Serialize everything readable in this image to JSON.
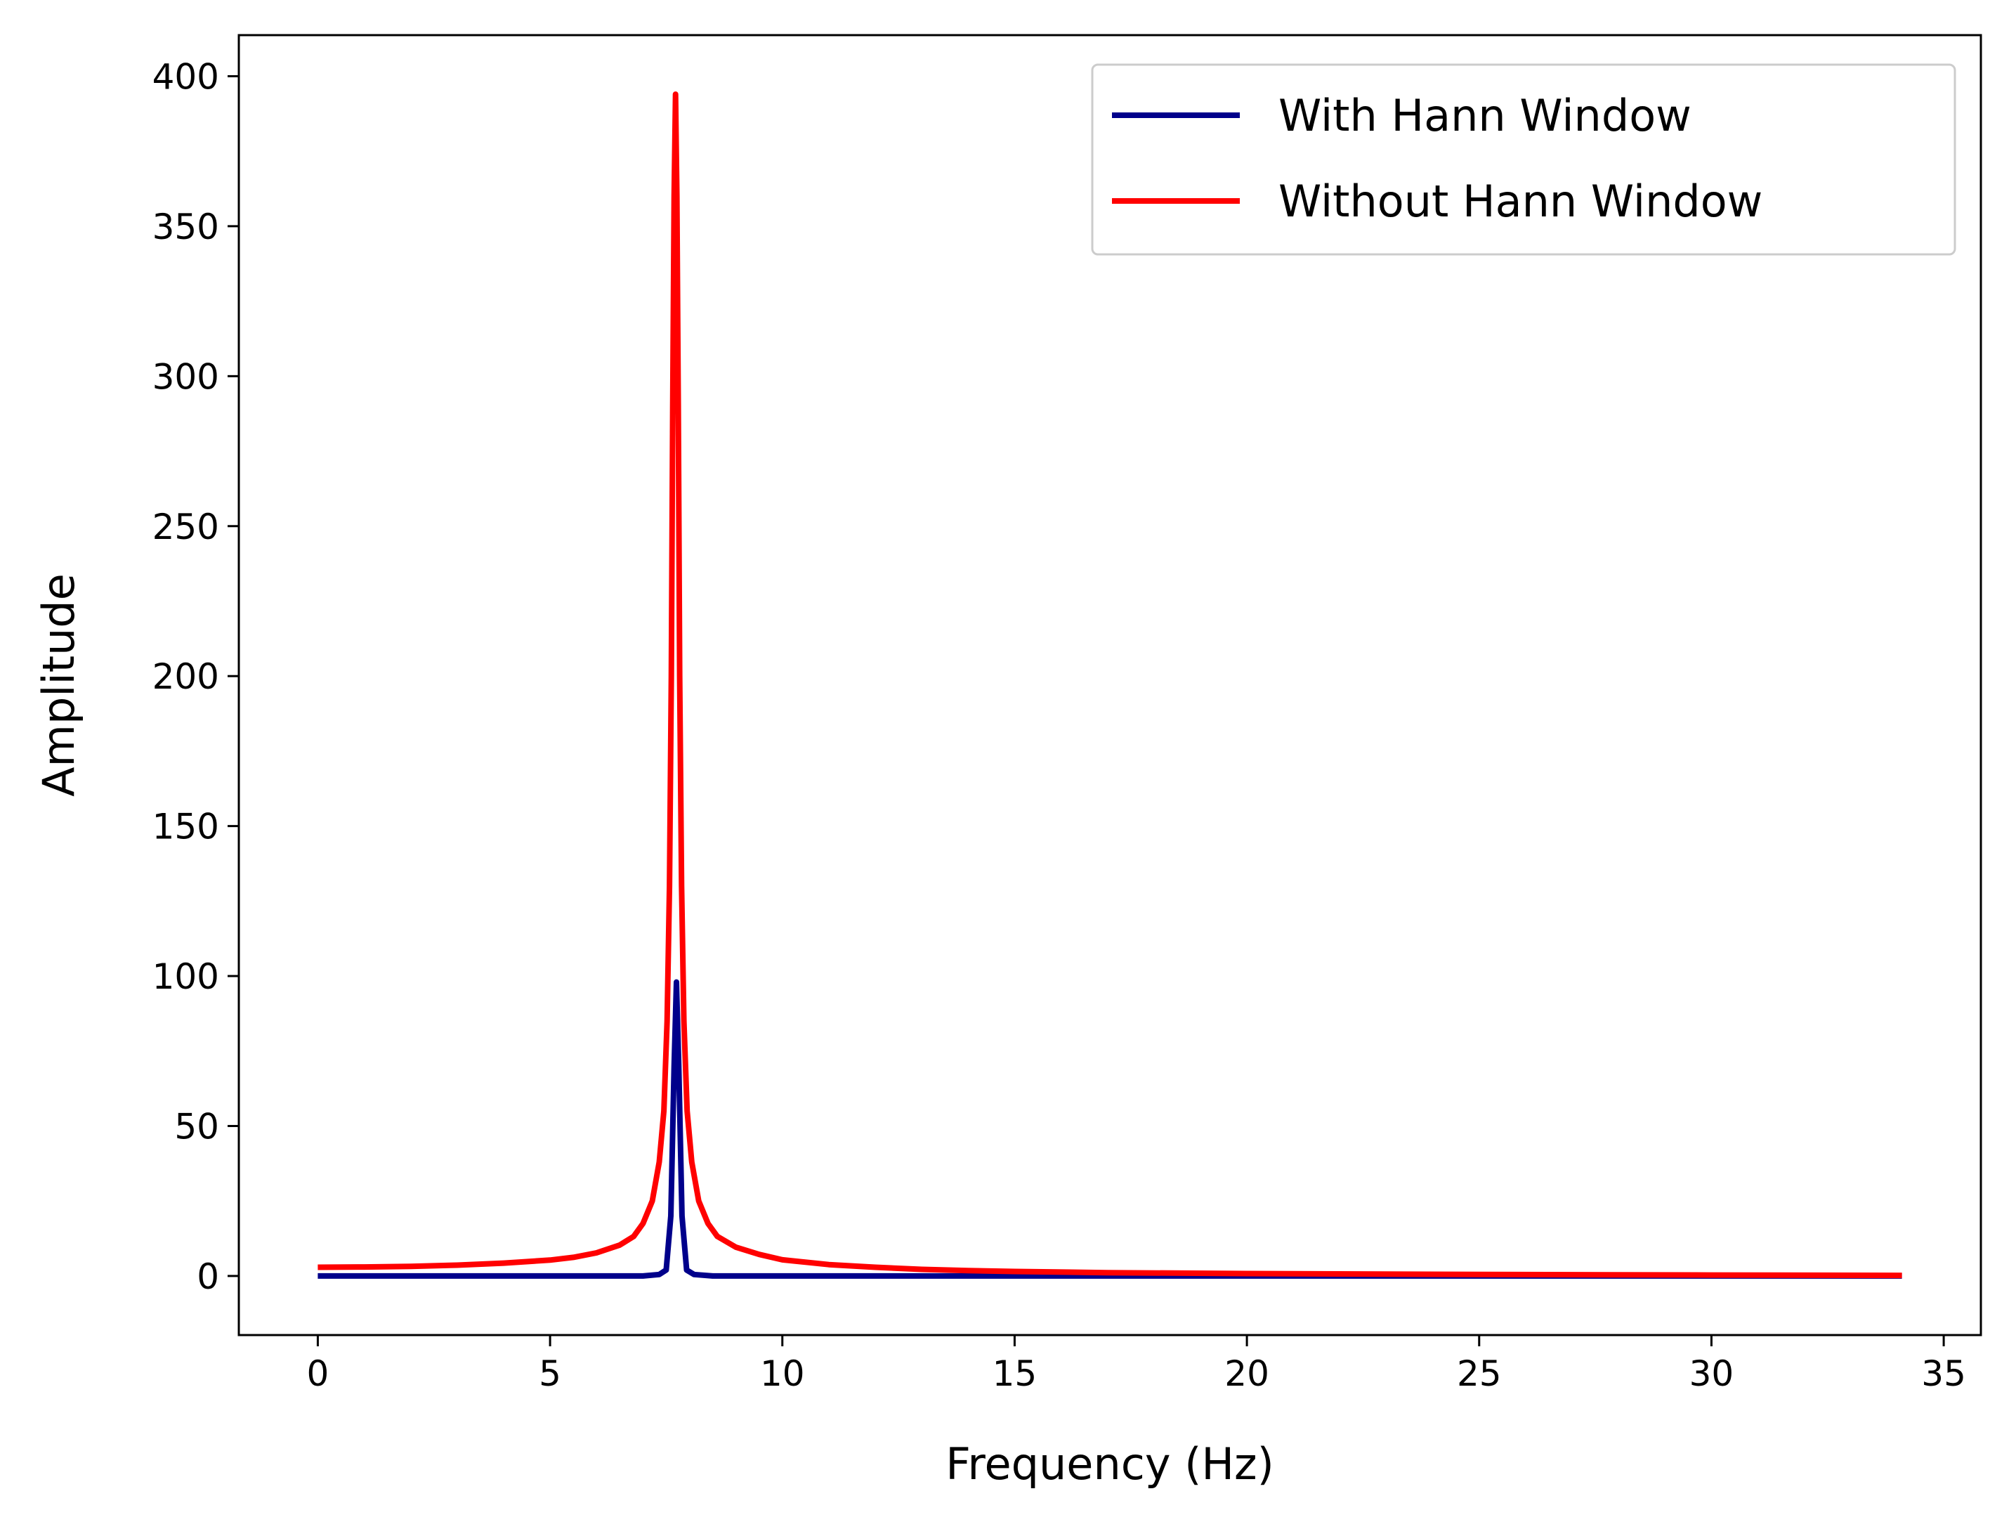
{
  "chart_data": {
    "type": "line",
    "title": "",
    "xlabel": "Frequency (Hz)",
    "ylabel": "Amplitude",
    "xlim": [
      -1.7,
      35.8
    ],
    "ylim": [
      -19.7,
      413.7
    ],
    "xticks": [
      0,
      5,
      10,
      15,
      20,
      25,
      30,
      35
    ],
    "yticks": [
      0,
      50,
      100,
      150,
      200,
      250,
      300,
      350,
      400
    ],
    "grid": false,
    "legend_position": "top-right",
    "series": [
      {
        "name": "With Hann Window",
        "color": "#00008b",
        "points": [
          [
            0,
            0
          ],
          [
            7.0,
            0
          ],
          [
            7.35,
            0.5
          ],
          [
            7.5,
            2
          ],
          [
            7.6,
            20
          ],
          [
            7.67,
            70
          ],
          [
            7.72,
            98
          ],
          [
            7.77,
            70
          ],
          [
            7.84,
            20
          ],
          [
            7.94,
            2
          ],
          [
            8.1,
            0.5
          ],
          [
            8.5,
            0
          ],
          [
            34.1,
            0
          ]
        ]
      },
      {
        "name": "Without Hann Window",
        "color": "#ff0000",
        "points": [
          [
            0,
            2.9
          ],
          [
            1,
            3.0
          ],
          [
            2,
            3.2
          ],
          [
            3,
            3.6
          ],
          [
            4,
            4.3
          ],
          [
            5,
            5.3
          ],
          [
            5.5,
            6.2
          ],
          [
            6,
            7.7
          ],
          [
            6.5,
            10.3
          ],
          [
            6.8,
            13.2
          ],
          [
            7.0,
            17.5
          ],
          [
            7.2,
            25
          ],
          [
            7.35,
            38
          ],
          [
            7.45,
            55
          ],
          [
            7.52,
            85
          ],
          [
            7.57,
            130
          ],
          [
            7.61,
            200
          ],
          [
            7.64,
            290
          ],
          [
            7.67,
            360
          ],
          [
            7.7,
            394
          ],
          [
            7.73,
            360
          ],
          [
            7.76,
            290
          ],
          [
            7.79,
            200
          ],
          [
            7.83,
            130
          ],
          [
            7.88,
            85
          ],
          [
            7.95,
            55
          ],
          [
            8.05,
            38
          ],
          [
            8.2,
            25
          ],
          [
            8.4,
            17.5
          ],
          [
            8.6,
            13.2
          ],
          [
            9,
            9.6
          ],
          [
            9.5,
            7.2
          ],
          [
            10,
            5.4
          ],
          [
            11,
            3.8
          ],
          [
            12,
            2.9
          ],
          [
            13,
            2.2
          ],
          [
            14,
            1.8
          ],
          [
            15,
            1.5
          ],
          [
            17,
            1.1
          ],
          [
            20,
            0.8
          ],
          [
            25,
            0.5
          ],
          [
            30,
            0.3
          ],
          [
            34.1,
            0.2
          ]
        ]
      }
    ]
  }
}
